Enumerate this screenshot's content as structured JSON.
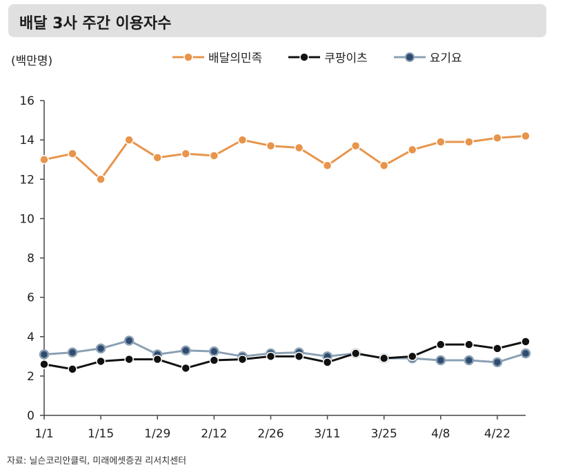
{
  "header": {
    "title": "배달 3사 주간 이용자수"
  },
  "unit_label": "(백만명)",
  "source_note": "자료: 닐슨코리안클릭, 미래에셋증권 리서치센터",
  "colors": {
    "baemin": "#e8944a",
    "coupang": "#111111",
    "yogiyo": "#8aa0b4",
    "yogiyo_fill": "#2f4b6e",
    "axis": "#444444"
  },
  "chart_data": {
    "type": "line",
    "title": "배달 3사 주간 이용자수",
    "ylabel": "(백만명)",
    "xlabel": "",
    "ylim": [
      0,
      16
    ],
    "yticks": [
      0,
      2,
      4,
      6,
      8,
      10,
      12,
      14,
      16
    ],
    "x_tick_labels": [
      "1/1",
      "1/15",
      "1/29",
      "2/12",
      "2/26",
      "3/11",
      "3/25",
      "4/8",
      "4/22"
    ],
    "x_tick_indices": [
      0,
      2,
      4,
      6,
      8,
      10,
      12,
      14,
      16
    ],
    "legend_position": "top",
    "series": [
      {
        "name": "배달의민족",
        "color_key": "baemin",
        "values": [
          13.0,
          13.3,
          12.0,
          14.0,
          13.1,
          13.3,
          13.2,
          14.0,
          13.7,
          13.6,
          12.7,
          13.7,
          12.7,
          13.5,
          13.9,
          13.9,
          14.1,
          14.2
        ]
      },
      {
        "name": "쿠팡이츠",
        "color_key": "coupang",
        "values": [
          2.6,
          2.35,
          2.75,
          2.85,
          2.85,
          2.4,
          2.8,
          2.85,
          3.0,
          3.0,
          2.7,
          3.15,
          2.9,
          3.0,
          3.6,
          3.6,
          3.4,
          3.75
        ]
      },
      {
        "name": "요기요",
        "color_key": "yogiyo",
        "values": [
          3.1,
          3.2,
          3.4,
          3.8,
          3.1,
          3.3,
          3.25,
          3.0,
          3.15,
          3.2,
          3.0,
          3.15,
          2.9,
          2.9,
          2.8,
          2.8,
          2.7,
          3.15
        ]
      }
    ]
  }
}
